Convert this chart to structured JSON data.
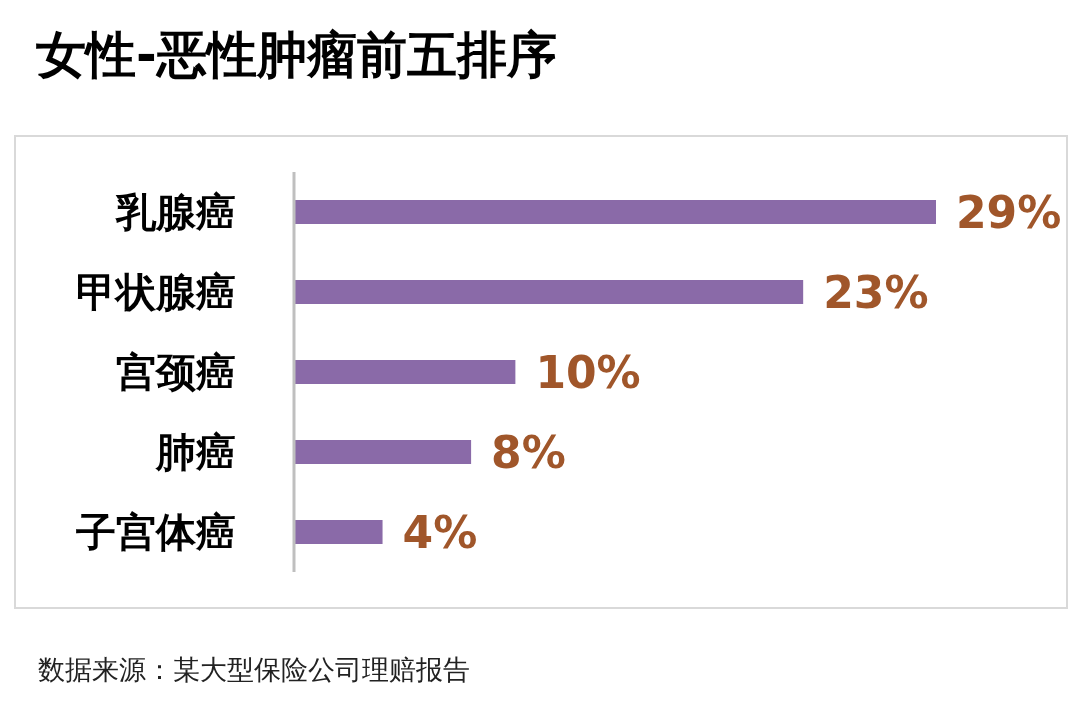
{
  "chart_data": {
    "type": "bar",
    "orientation": "horizontal",
    "title": "女性-恶性肿瘤前五排序",
    "categories": [
      "乳腺癌",
      "甲状腺癌",
      "宫颈癌",
      "肺癌",
      "子宫体癌"
    ],
    "values": [
      29,
      23,
      10,
      8,
      4
    ],
    "value_labels": [
      "29%",
      "23%",
      "10%",
      "8%",
      "4%"
    ],
    "color": "#8a6aa8",
    "annotations": [
      "数据来源：某大型保险公司理赔报告"
    ]
  }
}
